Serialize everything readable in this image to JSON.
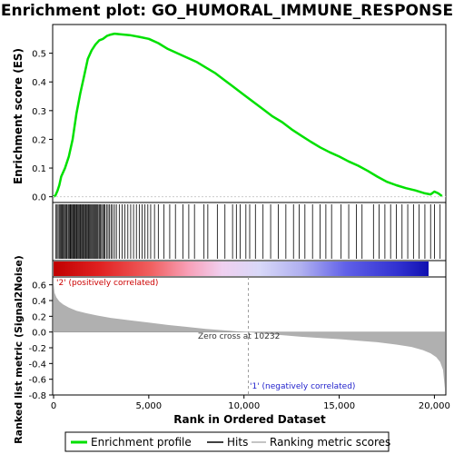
{
  "title": "Enrichment plot: GO_HUMORAL_IMMUNE_RESPONSE",
  "colors": {
    "es_line": "#00e000",
    "pos_label": "#cc0000",
    "neg_label": "#2222cc",
    "metric_fill": "#b0b0b0"
  },
  "chart_data": {
    "type": "line",
    "x_range": [
      0,
      20600
    ],
    "x_ticks": [
      0,
      5000,
      10000,
      15000,
      20000
    ],
    "x_tick_labels": [
      "0",
      "5,000",
      "10,000",
      "15,000",
      "20,000"
    ],
    "xlabel": "Rank in Ordered Dataset",
    "es_panel": {
      "ylabel": "Enrichment score (ES)",
      "ylim": [
        -0.02,
        0.6
      ],
      "y_ticks": [
        0.0,
        0.1,
        0.2,
        0.3,
        0.4,
        0.5
      ],
      "y_tick_labels": [
        "0.0",
        "0.1",
        "0.2",
        "0.3",
        "0.4",
        "0.5"
      ],
      "series_name": "Enrichment profile",
      "x": [
        0,
        100,
        200,
        300,
        400,
        600,
        800,
        1000,
        1200,
        1400,
        1600,
        1800,
        2000,
        2200,
        2400,
        2600,
        2800,
        3000,
        3200,
        3500,
        4000,
        4500,
        5000,
        5500,
        6000,
        6500,
        7000,
        7500,
        8000,
        8500,
        9000,
        9500,
        10000,
        10500,
        11000,
        11500,
        12000,
        12500,
        13000,
        13500,
        14000,
        14500,
        15000,
        15500,
        16000,
        16500,
        17000,
        17500,
        18000,
        18500,
        19000,
        19500,
        19800,
        20000,
        20200,
        20400
      ],
      "y": [
        0.0,
        0.005,
        0.02,
        0.04,
        0.07,
        0.1,
        0.14,
        0.2,
        0.29,
        0.36,
        0.42,
        0.48,
        0.51,
        0.53,
        0.545,
        0.55,
        0.56,
        0.565,
        0.568,
        0.566,
        0.563,
        0.557,
        0.55,
        0.535,
        0.515,
        0.5,
        0.485,
        0.47,
        0.45,
        0.43,
        0.405,
        0.38,
        0.355,
        0.33,
        0.305,
        0.28,
        0.26,
        0.235,
        0.213,
        0.192,
        0.172,
        0.155,
        0.14,
        0.123,
        0.108,
        0.09,
        0.07,
        0.052,
        0.04,
        0.03,
        0.022,
        0.012,
        0.008,
        0.018,
        0.012,
        0.002
      ]
    },
    "hits_panel": {
      "series_name": "Hits",
      "hit_ranks": [
        110,
        180,
        240,
        300,
        350,
        400,
        450,
        500,
        560,
        610,
        660,
        700,
        760,
        810,
        860,
        900,
        950,
        1000,
        1050,
        1090,
        1140,
        1190,
        1230,
        1280,
        1330,
        1380,
        1420,
        1470,
        1520,
        1560,
        1610,
        1660,
        1700,
        1750,
        1800,
        1840,
        1890,
        1940,
        1990,
        2040,
        2090,
        2140,
        2190,
        2240,
        2290,
        2340,
        2400,
        2460,
        2520,
        2580,
        2640,
        2700,
        2780,
        2860,
        2940,
        3020,
        3100,
        3200,
        3300,
        3450,
        3600,
        3750,
        3900,
        4050,
        4200,
        4350,
        4500,
        4650,
        4800,
        4950,
        5100,
        5300,
        5500,
        5800,
        6100,
        6400,
        6800,
        7100,
        7400,
        7900,
        8100,
        8600,
        9000,
        9400,
        9600,
        9800,
        10100,
        10300,
        10600,
        11000,
        11400,
        11800,
        12200,
        12600,
        12900,
        13200,
        13600,
        14000,
        14300,
        14600,
        15100,
        15500,
        15900,
        16200,
        16800,
        17100,
        17400,
        17700,
        18000,
        18300,
        18600,
        18900,
        19200,
        19500,
        19800,
        20000,
        20300
      ]
    },
    "metric_panel": {
      "ylabel": "Ranked list metric (Signal2Noise)",
      "series_name": "Ranking metric scores",
      "ylim": [
        -0.8,
        0.7
      ],
      "y_ticks": [
        -0.8,
        -0.6,
        -0.4,
        -0.2,
        0.0,
        0.2,
        0.4,
        0.6
      ],
      "y_tick_labels": [
        "-0.8",
        "-0.6",
        "-0.4",
        "-0.2",
        "0.0",
        "0.2",
        "0.4",
        "0.6"
      ],
      "x": [
        0,
        50,
        150,
        300,
        500,
        800,
        1200,
        1700,
        2300,
        3000,
        4000,
        5000,
        6000,
        7000,
        8000,
        9000,
        10232,
        11000,
        12000,
        13000,
        14000,
        15000,
        16000,
        17000,
        18000,
        18800,
        19400,
        19800,
        20100,
        20300,
        20450,
        20550
      ],
      "y": [
        0.62,
        0.5,
        0.44,
        0.39,
        0.35,
        0.31,
        0.27,
        0.24,
        0.21,
        0.18,
        0.15,
        0.12,
        0.09,
        0.065,
        0.04,
        0.02,
        0.0,
        -0.02,
        -0.04,
        -0.06,
        -0.075,
        -0.09,
        -0.11,
        -0.13,
        -0.16,
        -0.19,
        -0.23,
        -0.27,
        -0.32,
        -0.38,
        -0.48,
        -0.72
      ]
    },
    "zero_cross_rank": 10232,
    "annotations": {
      "positive": "'2' (positively correlated)",
      "negative": "'1' (negatively correlated)",
      "zero_cross": "Zero cross at 10232"
    },
    "legend": {
      "placement": "bottom",
      "items": [
        "Enrichment profile",
        "Hits",
        "Ranking metric scores"
      ]
    }
  }
}
